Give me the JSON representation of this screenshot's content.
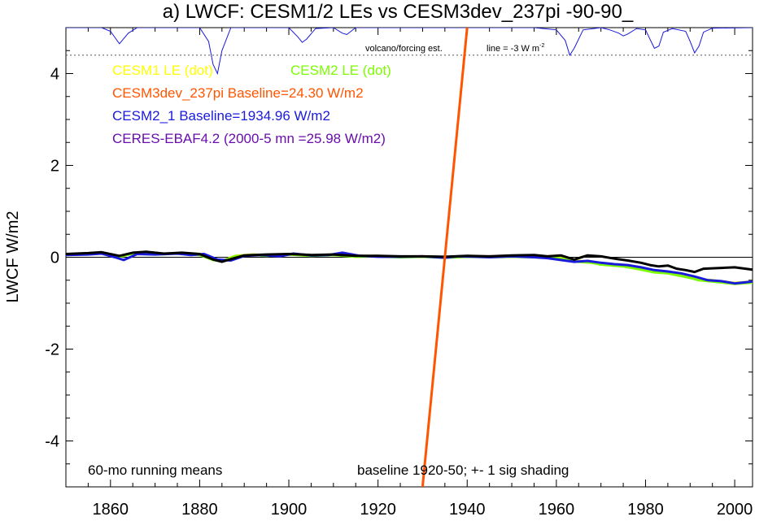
{
  "chart_data": {
    "type": "line",
    "title": "a) LWCF: CESM1/2 LEs vs CESM3dev_237pi -90-90_",
    "ylabel": "LWCF W/m2",
    "xlabel": "",
    "xlim": [
      1850,
      2004
    ],
    "ylim": [
      -5,
      5
    ],
    "x_ticks": [
      1860,
      1880,
      1900,
      1920,
      1940,
      1960,
      1980,
      2000
    ],
    "y_ticks": [
      -4,
      -2,
      0,
      2,
      4
    ],
    "zero_line": true,
    "legend": [
      {
        "text": "CESM1 LE (dot)",
        "color": "#ffff00"
      },
      {
        "text": "CESM2 LE (dot)",
        "color": "#7cfc00"
      },
      {
        "text": "CESM3dev_237pi Baseline=24.30 W/m2",
        "color": "#ff5500"
      },
      {
        "text": "CESM2_1 Baseline=1934.96 W/m2",
        "color": "#1a1adc"
      },
      {
        "text": "CERES-EBAF4.2 (2000-5 mn =25.98 W/m2)",
        "color": "#6a0dad"
      }
    ],
    "annotations": {
      "volcano": "volcano/forcing est.",
      "line_prefix": "line = -3 W m",
      "line_sup": "-2",
      "running_means": "60-mo running means",
      "baseline": "baseline 1920-50; +- 1 sig shading"
    },
    "volcano_reference_y": 4.4,
    "series": [
      {
        "name": "CESM1 LE (dot)",
        "color": "#d4e21a",
        "x": [
          1850,
          1855,
          1858,
          1862,
          1865,
          1870,
          1875,
          1880,
          1883,
          1885,
          1888,
          1892,
          1895,
          1900,
          1905,
          1910,
          1915,
          1920,
          1925,
          1930,
          1935,
          1940,
          1945,
          1950,
          1955,
          1960,
          1963,
          1965,
          1968,
          1970,
          1975,
          1978,
          1980,
          1982,
          1985,
          1988,
          1990,
          1992,
          1995,
          2000,
          2004
        ],
        "values": [
          0.06,
          0.08,
          0.1,
          0.02,
          0.09,
          0.07,
          0.09,
          0.06,
          -0.05,
          -0.08,
          0.03,
          0.06,
          0.04,
          0.07,
          0.04,
          0.06,
          0.02,
          0.03,
          0.01,
          0.02,
          0.0,
          0.02,
          0.01,
          0.02,
          0.01,
          0.0,
          -0.05,
          -0.08,
          -0.1,
          -0.14,
          -0.17,
          -0.22,
          -0.26,
          -0.3,
          -0.32,
          -0.38,
          -0.42,
          -0.48,
          -0.5,
          -0.56,
          -0.53
        ]
      },
      {
        "name": "CESM2 LE (dot)",
        "color": "#7cfc00",
        "x": [
          1850,
          1855,
          1858,
          1862,
          1865,
          1870,
          1875,
          1880,
          1883,
          1885,
          1888,
          1892,
          1895,
          1900,
          1905,
          1910,
          1915,
          1920,
          1925,
          1930,
          1935,
          1940,
          1945,
          1950,
          1955,
          1960,
          1963,
          1965,
          1968,
          1970,
          1975,
          1978,
          1980,
          1982,
          1985,
          1988,
          1990,
          1992,
          1995,
          2000,
          2004
        ],
        "values": [
          0.05,
          0.07,
          0.09,
          0.01,
          0.08,
          0.06,
          0.08,
          0.05,
          -0.06,
          -0.09,
          0.02,
          0.05,
          0.03,
          0.06,
          0.03,
          0.05,
          0.01,
          0.02,
          0.0,
          0.01,
          -0.01,
          0.01,
          0.0,
          0.01,
          0.0,
          -0.02,
          -0.07,
          -0.1,
          -0.12,
          -0.16,
          -0.2,
          -0.25,
          -0.29,
          -0.33,
          -0.35,
          -0.41,
          -0.45,
          -0.5,
          -0.53,
          -0.58,
          -0.55
        ]
      },
      {
        "name": "CESM2_1 Baseline=1934.96 W/m2",
        "color": "#1a1adc",
        "x": [
          1850,
          1855,
          1858,
          1861,
          1863,
          1866,
          1870,
          1875,
          1878,
          1881,
          1884,
          1887,
          1890,
          1894,
          1898,
          1901,
          1905,
          1909,
          1912,
          1916,
          1920,
          1925,
          1930,
          1935,
          1938,
          1942,
          1945,
          1950,
          1955,
          1958,
          1961,
          1964,
          1967,
          1970,
          1973,
          1976,
          1979,
          1982,
          1985,
          1988,
          1991,
          1994,
          1997,
          2000,
          2004
        ],
        "values": [
          0.05,
          0.06,
          0.08,
          0.0,
          -0.06,
          0.07,
          0.06,
          0.08,
          0.05,
          0.07,
          -0.05,
          -0.07,
          0.03,
          0.05,
          0.02,
          0.08,
          0.04,
          0.05,
          0.1,
          0.03,
          0.01,
          0.01,
          0.02,
          -0.01,
          0.02,
          0.01,
          0.0,
          0.02,
          0.0,
          -0.02,
          -0.06,
          -0.1,
          -0.08,
          -0.12,
          -0.15,
          -0.17,
          -0.22,
          -0.28,
          -0.31,
          -0.35,
          -0.42,
          -0.5,
          -0.52,
          -0.57,
          -0.53
        ]
      },
      {
        "name": "CESM3dev_237pi Baseline=24.30 W/m2",
        "color": "#000000",
        "x": [
          1850,
          1855,
          1858,
          1862,
          1865,
          1868,
          1872,
          1876,
          1880,
          1883,
          1885,
          1887,
          1890,
          1895,
          1900,
          1905,
          1910,
          1915,
          1920,
          1925,
          1930,
          1935,
          1940,
          1945,
          1950,
          1955,
          1958,
          1961,
          1964,
          1967,
          1970,
          1973,
          1976,
          1979,
          1981,
          1983,
          1985,
          1987,
          1989,
          1991,
          1993,
          1995,
          2000,
          2004
        ],
        "values": [
          0.07,
          0.09,
          0.11,
          0.03,
          0.1,
          0.12,
          0.08,
          0.1,
          0.07,
          -0.05,
          -0.1,
          -0.04,
          0.04,
          0.06,
          0.07,
          0.05,
          0.06,
          0.03,
          0.03,
          0.02,
          0.02,
          0.01,
          0.03,
          0.02,
          0.04,
          0.05,
          0.02,
          0.04,
          -0.05,
          0.04,
          0.02,
          -0.03,
          -0.07,
          -0.12,
          -0.17,
          -0.2,
          -0.18,
          -0.25,
          -0.28,
          -0.32,
          -0.25,
          -0.24,
          -0.22,
          -0.27
        ]
      }
    ],
    "trend_line": {
      "name": "CESM3dev_237pi Baseline=24.30 W/m2",
      "color": "#ff5500",
      "x": [
        1930,
        1940
      ],
      "values": [
        -5,
        5
      ]
    },
    "volcano_series": {
      "color": "#1a1adc",
      "x": [
        1850,
        1858,
        1860,
        1862,
        1864,
        1866,
        1880,
        1882,
        1883,
        1884,
        1885,
        1887,
        1900,
        1902,
        1903,
        1904,
        1906,
        1910,
        1912,
        1913,
        1915,
        1955,
        1960,
        1962,
        1963,
        1964,
        1966,
        1970,
        1972,
        1974,
        1975,
        1976,
        1978,
        1980,
        1981,
        1982,
        1983,
        1984,
        1986,
        1989,
        1990,
        1991,
        1992,
        1993,
        1995,
        2004
      ],
      "values": [
        5.0,
        5.0,
        4.92,
        4.65,
        4.88,
        5.0,
        5.0,
        4.7,
        4.2,
        4.0,
        4.5,
        5.0,
        5.0,
        4.8,
        4.68,
        4.75,
        4.98,
        5.0,
        4.88,
        4.85,
        5.0,
        5.0,
        4.95,
        4.72,
        4.4,
        4.55,
        4.95,
        5.0,
        4.95,
        4.88,
        4.82,
        4.86,
        4.98,
        4.95,
        4.75,
        4.55,
        4.6,
        4.9,
        4.98,
        4.92,
        4.7,
        4.45,
        4.6,
        4.9,
        4.99,
        5.0
      ]
    }
  }
}
